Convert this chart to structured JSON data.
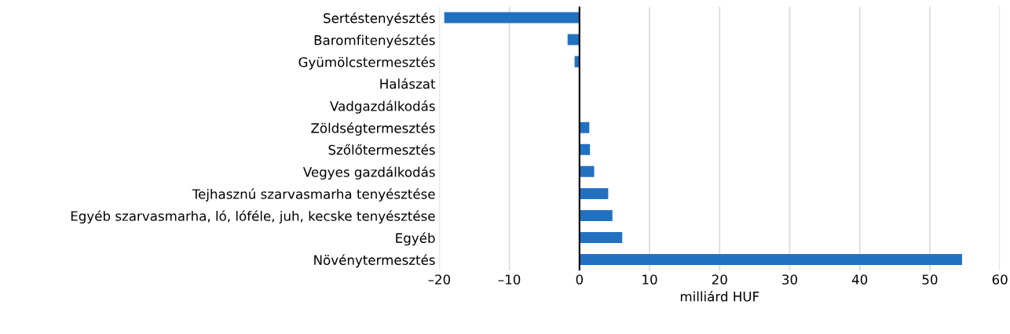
{
  "chart_data": {
    "type": "bar",
    "orientation": "horizontal",
    "xlabel": "milliárd HUF",
    "categories": [
      "Sertéstenyésztés",
      "Baromfitenyésztés",
      "Gyümölcstermesztés",
      "Halászat",
      "Vadgazdálkodás",
      "Zöldségtermesztés",
      "Szőlőtermesztés",
      "Vegyes gazdálkodás",
      "Tejhasznú szarvasmarha tenyésztése",
      "Egyéb szarvasmarha, ló, lóféle, juh, kecske tenyésztése",
      "Egyéb",
      "Növénytermesztés"
    ],
    "values": [
      -19.3,
      -1.7,
      -0.7,
      0,
      0,
      1.4,
      1.5,
      2.1,
      4.1,
      4.7,
      6.1,
      54.6
    ],
    "color": "#2271c1",
    "xlim": [
      -20,
      60
    ],
    "xticks": [
      {
        "value": -20,
        "label": "–20"
      },
      {
        "value": -10,
        "label": "–10"
      },
      0,
      10,
      20,
      30,
      40,
      50,
      60
    ],
    "grid": "x"
  }
}
